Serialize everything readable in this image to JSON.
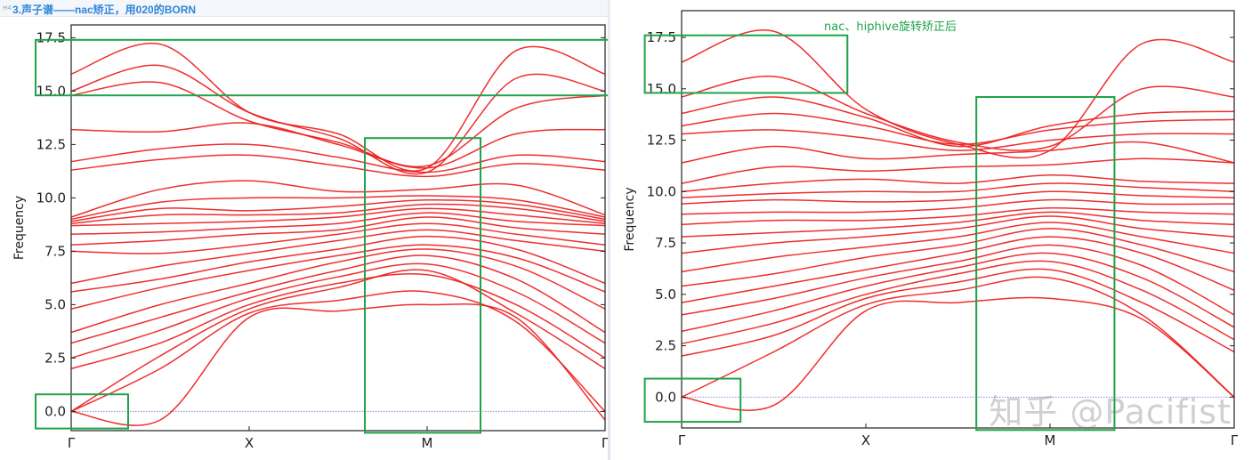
{
  "heading": {
    "tag": "H4",
    "text": "3.声子谱——nac矫正，用020的BORN"
  },
  "watermark": "知乎 @Pacifist",
  "colors": {
    "band": "#ee1c1c",
    "box": "#1fa34a",
    "zero_line": "#8a8ad8",
    "heading": "#2f86d6"
  },
  "chart_data": [
    {
      "type": "line",
      "title": "",
      "xlabel": "",
      "ylabel": "Frequency",
      "x_ticks": [
        "Γ",
        "X",
        "M",
        "Γ"
      ],
      "x_segments": [
        0,
        1,
        2,
        3
      ],
      "ylim": [
        -0.9,
        18.1
      ],
      "y_ticks": [
        0.0,
        2.5,
        5.0,
        7.5,
        10.0,
        12.5,
        15.0,
        17.5
      ],
      "y_tick_labels": [
        "0.0",
        "2.5",
        "5.0",
        "7.5",
        "10.0",
        "12.5",
        "15.0",
        "17.5"
      ],
      "grid": false,
      "band_samples_x": [
        0,
        0.5,
        1,
        1.5,
        2,
        2.5,
        3
      ],
      "bands": [
        [
          0.0,
          -0.4,
          4.4,
          4.7,
          5.0,
          4.4,
          -0.4
        ],
        [
          0.0,
          2.0,
          4.6,
          5.2,
          5.6,
          4.2,
          0.0
        ],
        [
          0.0,
          2.6,
          4.8,
          5.8,
          6.6,
          4.6,
          2.0
        ],
        [
          2.0,
          3.2,
          5.0,
          6.0,
          6.4,
          5.0,
          2.5
        ],
        [
          2.5,
          3.8,
          5.3,
          6.3,
          6.9,
          5.6,
          3.2
        ],
        [
          3.2,
          4.4,
          5.6,
          6.6,
          7.3,
          6.2,
          3.7
        ],
        [
          3.7,
          5.0,
          6.0,
          7.0,
          7.6,
          6.8,
          4.8
        ],
        [
          4.8,
          5.8,
          6.6,
          7.3,
          7.8,
          7.2,
          5.6
        ],
        [
          5.6,
          6.2,
          7.0,
          7.6,
          8.2,
          7.6,
          6.0
        ],
        [
          6.0,
          6.8,
          7.4,
          8.0,
          8.5,
          8.0,
          7.5
        ],
        [
          7.5,
          7.4,
          7.8,
          8.3,
          8.8,
          8.3,
          7.8
        ],
        [
          7.8,
          8.0,
          8.3,
          8.5,
          9.1,
          8.6,
          8.3
        ],
        [
          8.3,
          8.4,
          8.6,
          8.8,
          9.3,
          8.9,
          8.7
        ],
        [
          8.7,
          8.8,
          8.9,
          9.1,
          9.5,
          9.2,
          8.8
        ],
        [
          8.8,
          9.2,
          9.2,
          9.3,
          9.7,
          9.5,
          8.9
        ],
        [
          8.9,
          9.5,
          9.4,
          9.6,
          9.9,
          9.7,
          9.0
        ],
        [
          9.0,
          9.8,
          10.0,
          10.0,
          10.1,
          9.9,
          9.1
        ],
        [
          9.1,
          10.4,
          10.8,
          10.3,
          10.4,
          10.6,
          9.2
        ],
        [
          11.3,
          11.8,
          12.0,
          11.5,
          11.0,
          11.6,
          11.3
        ],
        [
          11.7,
          12.3,
          12.5,
          11.9,
          11.2,
          12.0,
          11.7
        ],
        [
          13.2,
          13.1,
          13.5,
          12.5,
          11.4,
          13.0,
          13.2
        ],
        [
          14.8,
          15.4,
          13.6,
          12.6,
          11.5,
          14.2,
          14.8
        ],
        [
          15.0,
          16.2,
          14.0,
          12.8,
          11.2,
          15.6,
          15.0
        ],
        [
          15.8,
          17.2,
          14.0,
          13.0,
          11.4,
          16.9,
          15.8
        ]
      ],
      "highlight_boxes": [
        {
          "label": "",
          "x_range": [
            -0.2,
            3.6
          ],
          "y_range": [
            14.8,
            17.4
          ]
        },
        {
          "label": "",
          "x_range": [
            1.65,
            2.3
          ],
          "y_range": [
            -1.0,
            12.8
          ]
        },
        {
          "label": "",
          "x_range": [
            -0.2,
            0.32
          ],
          "y_range": [
            -0.8,
            0.8
          ]
        }
      ]
    },
    {
      "type": "line",
      "title": "",
      "xlabel": "",
      "ylabel": "Frequency",
      "x_ticks": [
        "Γ",
        "X",
        "M",
        "Γ"
      ],
      "x_segments": [
        0,
        1,
        2,
        3
      ],
      "ylim": [
        -1.5,
        18.8
      ],
      "y_ticks": [
        0.0,
        2.5,
        5.0,
        7.5,
        10.0,
        12.5,
        15.0,
        17.5
      ],
      "y_tick_labels": [
        "0.0",
        "2.5",
        "5.0",
        "7.5",
        "10.0",
        "12.5",
        "15.0",
        "17.5"
      ],
      "grid": false,
      "annotation": "nac、hiphive旋转矫正后",
      "band_samples_x": [
        0,
        0.5,
        1,
        1.5,
        2,
        2.5,
        3
      ],
      "bands": [
        [
          0.0,
          -0.4,
          4.2,
          4.6,
          4.8,
          3.8,
          0.0
        ],
        [
          0.0,
          2.2,
          4.5,
          5.2,
          5.8,
          4.0,
          0.0
        ],
        [
          2.0,
          3.0,
          4.8,
          5.6,
          6.2,
          4.6,
          2.2
        ],
        [
          2.6,
          3.6,
          5.0,
          6.0,
          6.6,
          5.2,
          2.8
        ],
        [
          3.2,
          4.2,
          5.4,
          6.3,
          7.0,
          5.8,
          3.4
        ],
        [
          4.0,
          4.8,
          5.8,
          6.6,
          7.4,
          6.4,
          4.0
        ],
        [
          4.6,
          5.4,
          6.2,
          7.0,
          7.8,
          7.0,
          5.2
        ],
        [
          5.4,
          6.0,
          6.8,
          7.4,
          8.2,
          7.4,
          6.1
        ],
        [
          6.1,
          6.8,
          7.3,
          7.8,
          8.5,
          7.8,
          7.0
        ],
        [
          7.0,
          7.5,
          7.8,
          8.2,
          8.8,
          8.2,
          7.8
        ],
        [
          7.8,
          8.0,
          8.2,
          8.5,
          9.0,
          8.6,
          8.4
        ],
        [
          8.4,
          8.6,
          8.6,
          8.8,
          9.2,
          9.0,
          8.9
        ],
        [
          8.9,
          9.0,
          9.0,
          9.2,
          9.6,
          9.4,
          9.4
        ],
        [
          9.4,
          9.6,
          9.5,
          9.6,
          10.0,
          9.8,
          9.7
        ],
        [
          9.7,
          9.9,
          10.0,
          10.0,
          10.4,
          10.2,
          10.0
        ],
        [
          10.0,
          10.4,
          10.6,
          10.4,
          10.8,
          10.5,
          10.4
        ],
        [
          10.4,
          11.2,
          11.0,
          11.2,
          11.3,
          11.6,
          11.4
        ],
        [
          11.4,
          12.2,
          11.6,
          11.8,
          12.0,
          12.4,
          11.4
        ],
        [
          12.8,
          13.0,
          12.6,
          12.0,
          12.5,
          12.8,
          12.8
        ],
        [
          13.2,
          13.8,
          13.2,
          12.3,
          13.0,
          13.4,
          13.5
        ],
        [
          13.8,
          14.6,
          13.6,
          12.2,
          13.2,
          13.8,
          13.9
        ],
        [
          14.6,
          15.6,
          13.8,
          12.4,
          12.2,
          15.0,
          14.6
        ],
        [
          16.3,
          17.8,
          14.0,
          12.3,
          12.0,
          17.2,
          16.3
        ]
      ],
      "highlight_boxes": [
        {
          "label": "",
          "x_range": [
            -0.2,
            0.9
          ],
          "y_range": [
            14.8,
            17.6
          ]
        },
        {
          "label": "",
          "x_range": [
            1.6,
            2.35
          ],
          "y_range": [
            -1.6,
            14.6
          ]
        },
        {
          "label": "",
          "x_range": [
            -0.2,
            0.32
          ],
          "y_range": [
            -1.2,
            0.9
          ]
        }
      ]
    }
  ]
}
